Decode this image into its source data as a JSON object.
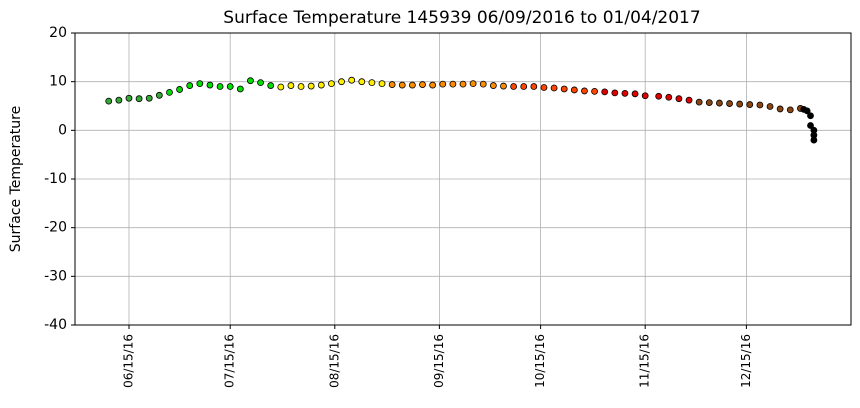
{
  "chart_data": {
    "type": "scatter",
    "title": "Surface Temperature 145939  06/09/2016 to 01/04/2017",
    "y_label": "Surface Temperature",
    "xlim": [
      "05/30/16",
      "01/15/17"
    ],
    "xticks": [
      "06/15/16",
      "07/15/16",
      "08/15/16",
      "09/15/16",
      "10/15/16",
      "11/15/16",
      "12/15/16"
    ],
    "ylim": [
      -40,
      20
    ],
    "yticks": [
      -40,
      -30,
      -20,
      -10,
      0,
      10,
      20
    ],
    "grid": true,
    "series": [
      {
        "color": "#33aa33",
        "x": [
          "06/09/16",
          "06/12/16",
          "06/15/16",
          "06/18/16",
          "06/21/16",
          "06/24/16"
        ],
        "values": [
          6,
          6.2,
          6.6,
          6.5,
          6.6,
          7.2
        ]
      },
      {
        "color": "#00dd00",
        "x": [
          "06/27/16",
          "06/30/16",
          "07/03/16",
          "07/06/16",
          "07/09/16",
          "07/12/16",
          "07/15/16",
          "07/18/16",
          "07/21/16",
          "07/24/16",
          "07/27/16"
        ],
        "values": [
          7.8,
          8.4,
          9.2,
          9.6,
          9.3,
          9.0,
          9.0,
          8.5,
          10.2,
          9.8,
          9.2
        ]
      },
      {
        "color": "#ffee00",
        "x": [
          "07/30/16",
          "08/02/16",
          "08/05/16",
          "08/08/16",
          "08/11/16",
          "08/14/16",
          "08/17/16",
          "08/20/16",
          "08/23/16",
          "08/26/16",
          "08/29/16"
        ],
        "values": [
          8.9,
          9.2,
          9.0,
          9.1,
          9.3,
          9.6,
          10.0,
          10.3,
          10.0,
          9.8,
          9.6
        ]
      },
      {
        "color": "#ff8c00",
        "x": [
          "09/01/16",
          "09/04/16",
          "09/07/16",
          "09/10/16",
          "09/13/16",
          "09/16/16",
          "09/19/16",
          "09/22/16",
          "09/25/16",
          "09/28/16",
          "10/01/16",
          "10/04/16"
        ],
        "values": [
          9.4,
          9.3,
          9.3,
          9.4,
          9.3,
          9.5,
          9.5,
          9.5,
          9.6,
          9.5,
          9.2,
          9.1
        ]
      },
      {
        "color": "#ff4500",
        "x": [
          "10/07/16",
          "10/10/16",
          "10/13/16",
          "10/16/16",
          "10/19/16",
          "10/22/16",
          "10/25/16",
          "10/28/16",
          "10/31/16"
        ],
        "values": [
          9.0,
          9.0,
          9.0,
          8.8,
          8.7,
          8.5,
          8.3,
          8.1,
          8.0
        ]
      },
      {
        "color": "#e00000",
        "x": [
          "11/03/16",
          "11/06/16",
          "11/09/16",
          "11/12/16",
          "11/15/16",
          "11/19/16",
          "11/22/16",
          "11/25/16",
          "11/28/16"
        ],
        "values": [
          7.9,
          7.7,
          7.6,
          7.5,
          7.1,
          7.0,
          6.8,
          6.5,
          6.2
        ]
      },
      {
        "color": "#8b4513",
        "x": [
          "12/01/16",
          "12/04/16",
          "12/07/16",
          "12/10/16",
          "12/13/16",
          "12/16/16",
          "12/19/16",
          "12/22/16",
          "12/25/16",
          "12/28/16",
          "12/31/16"
        ],
        "values": [
          5.8,
          5.7,
          5.6,
          5.5,
          5.4,
          5.3,
          5.2,
          4.9,
          4.4,
          4.2,
          4.5
        ]
      },
      {
        "color": "#000000",
        "x": [
          "01/01/17",
          "01/02/17",
          "01/03/17",
          "01/03/17",
          "01/04/17",
          "01/04/17",
          "01/04/17"
        ],
        "values": [
          4.3,
          4.0,
          3.0,
          1.0,
          0,
          -1,
          -2
        ]
      }
    ]
  }
}
